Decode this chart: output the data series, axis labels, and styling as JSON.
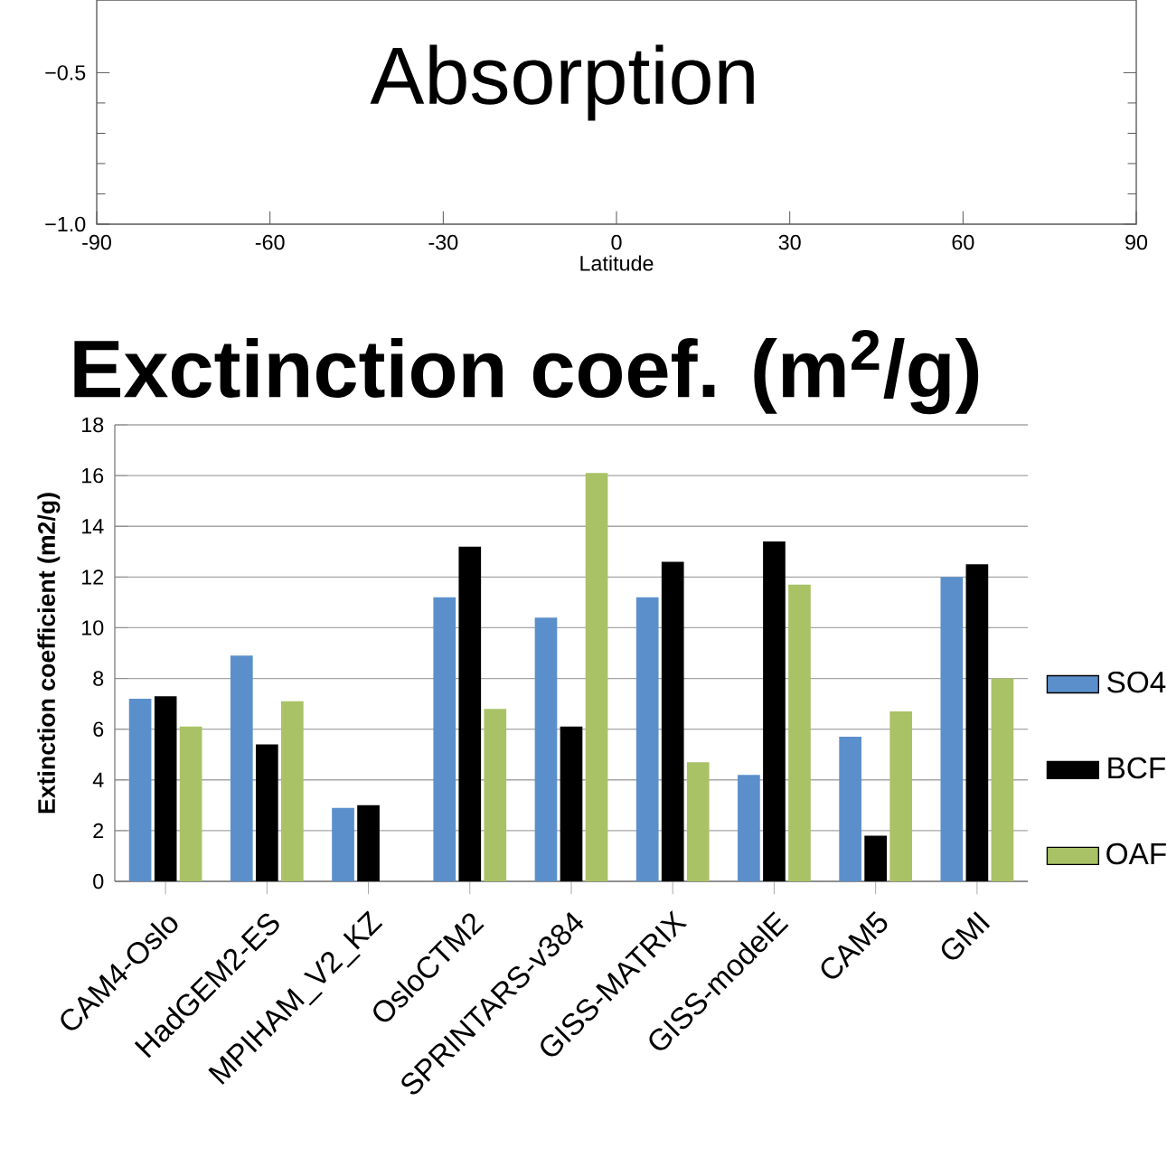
{
  "chart_data": [
    {
      "type": "line",
      "title": "Absorption",
      "xlabel": "Latitude",
      "xlim": [
        -90,
        90
      ],
      "ylim": [
        -1.0,
        -0.26
      ],
      "xticks": [
        -90,
        -60,
        -30,
        0,
        30,
        60,
        90
      ],
      "yticks": [
        {
          "value": -1.0,
          "label": "−1.0"
        },
        {
          "value": -0.5,
          "label": "−0.5"
        }
      ],
      "grid": false,
      "legend": false
    },
    {
      "type": "bar",
      "title": "Exctinction coef. (m$^{2}$/g)",
      "ylabel": "Extinction coefficient (m2/g)",
      "categories": [
        "CAM4-Oslo",
        "HadGEM2-ES",
        "MPIHAM_V2_KZ",
        "OsloCTM2",
        "SPRINTARS-v384",
        "GISS-MATRIX",
        "GISS-modelE",
        "CAM5",
        "GMI"
      ],
      "ylim": [
        0,
        18
      ],
      "yticks": [
        0,
        2,
        4,
        6,
        8,
        10,
        12,
        14,
        16,
        18
      ],
      "grid": "y",
      "legend": "right",
      "series": [
        {
          "name": "SO4",
          "color": "#5b8fcb",
          "values": [
            7.2,
            8.9,
            2.9,
            11.2,
            10.4,
            11.2,
            4.2,
            5.7,
            12.0
          ]
        },
        {
          "name": "BCF",
          "color": "#000000",
          "values": [
            7.3,
            5.4,
            3.0,
            13.2,
            6.1,
            12.6,
            13.4,
            1.8,
            12.5
          ]
        },
        {
          "name": "OAF",
          "color": "#a9c266",
          "values": [
            6.1,
            7.1,
            null,
            6.8,
            16.1,
            4.7,
            11.7,
            6.7,
            8.0
          ]
        }
      ]
    }
  ]
}
